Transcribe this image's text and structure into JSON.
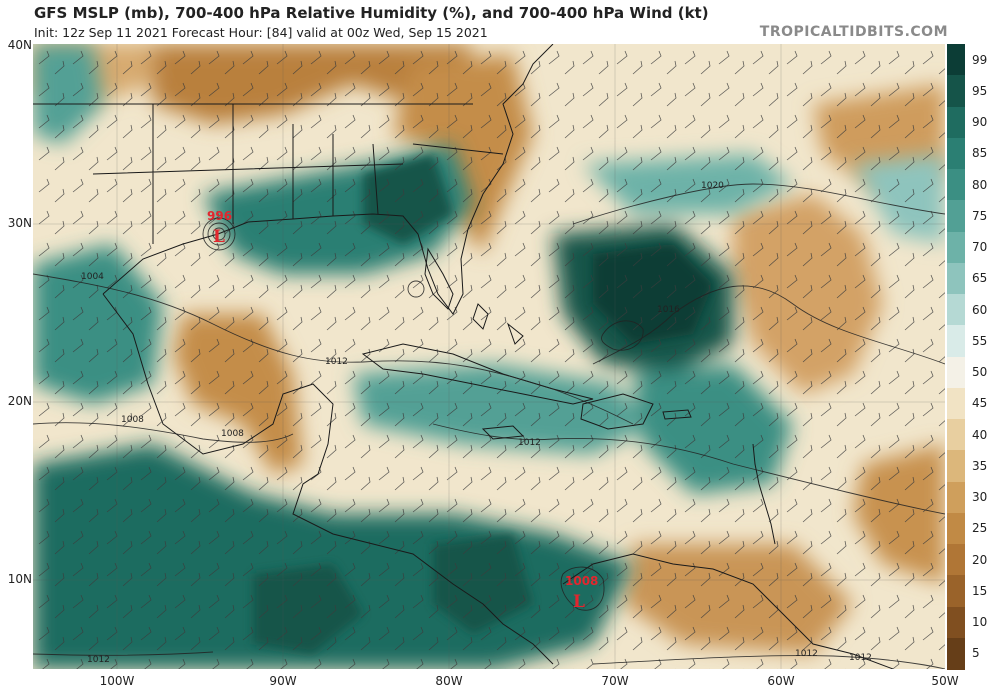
{
  "header": {
    "title": "GFS MSLP (mb), 700-400 hPa Relative Humidity (%), and 700-400 hPa Wind (kt)",
    "subtitle": "Init: 12z Sep 11 2021   Forecast Hour: [84]   valid at 00z Wed, Sep 15 2021",
    "brand": "TROPICALTIDBITS.COM"
  },
  "axes": {
    "lat_labels": [
      "40N",
      "30N",
      "20N",
      "10N"
    ],
    "lon_labels": [
      "100W",
      "90W",
      "80W",
      "70W",
      "60W",
      "50W"
    ]
  },
  "colorbar": {
    "ticks": [
      "99",
      "95",
      "90",
      "85",
      "80",
      "75",
      "70",
      "65",
      "60",
      "55",
      "50",
      "45",
      "40",
      "35",
      "30",
      "25",
      "20",
      "15",
      "10",
      "5"
    ],
    "colors": [
      "#0c3d36",
      "#155449",
      "#1f6c60",
      "#2b7f73",
      "#3b8f83",
      "#52a095",
      "#6db2a8",
      "#8ec4bd",
      "#b5d9d4",
      "#d9ebe8",
      "#f4f1e7",
      "#f1e3c4",
      "#e8cfa0",
      "#dcb77b",
      "#cf9f5c",
      "#c18a45",
      "#b07636",
      "#9a632a",
      "#804f20",
      "#663e18"
    ]
  },
  "map": {
    "pressure_labels": [
      "1020",
      "1016",
      "1012",
      "1012",
      "1012",
      "1008",
      "1008",
      "1004",
      "1012",
      "1012"
    ],
    "lows": [
      {
        "value": "996",
        "symbol": "L"
      },
      {
        "value": "1008",
        "symbol": "L"
      }
    ],
    "colors": {
      "moist": "#1f6c60",
      "dry": "#c18a45",
      "neutral": "#f4f1e7",
      "low_marker": "#e2262e"
    }
  }
}
